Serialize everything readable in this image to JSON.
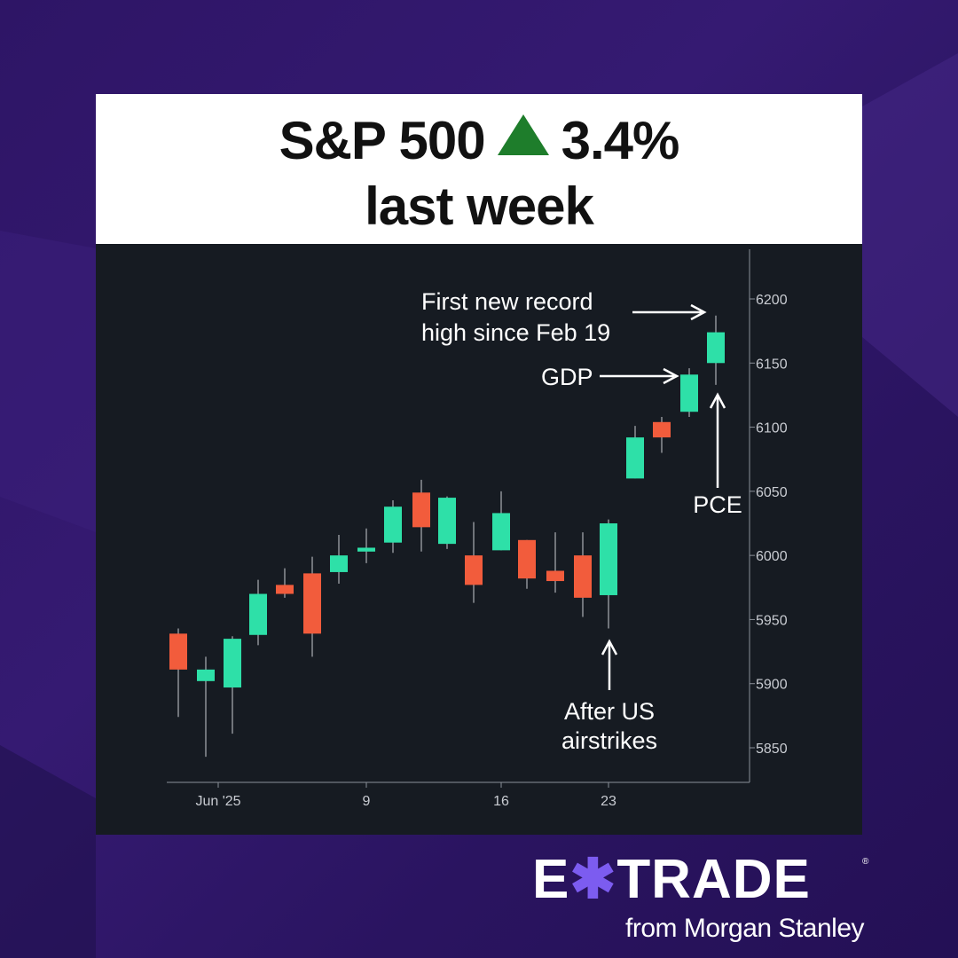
{
  "header": {
    "index_label": "S&P 500",
    "change": "3.4%",
    "period": "last week",
    "direction_icon": "up-triangle",
    "up_color": "#1e7d2b"
  },
  "chart_data": {
    "type": "candlestick",
    "y_ticks": [
      6200,
      6150,
      6100,
      6050,
      6000,
      5950,
      5900,
      5850
    ],
    "x_ticks": [
      "Jun '25",
      "9",
      "16",
      "23"
    ],
    "ylim": [
      5820,
      6235
    ],
    "grid": false,
    "up_color": "#2ee0a8",
    "down_color": "#f25c3c",
    "candles": [
      {
        "date": "May 29",
        "open": 5939,
        "high": 5943,
        "low": 5874,
        "close": 5911
      },
      {
        "date": "May 30",
        "open": 5902,
        "high": 5921,
        "low": 5843,
        "close": 5911
      },
      {
        "date": "Jun 2",
        "open": 5897,
        "high": 5937,
        "low": 5861,
        "close": 5935
      },
      {
        "date": "Jun 3",
        "open": 5938,
        "high": 5981,
        "low": 5930,
        "close": 5970
      },
      {
        "date": "Jun 4",
        "open": 5977,
        "high": 5990,
        "low": 5967,
        "close": 5970
      },
      {
        "date": "Jun 5",
        "open": 5986,
        "high": 5999,
        "low": 5921,
        "close": 5939
      },
      {
        "date": "Jun 6",
        "open": 5987,
        "high": 6016,
        "low": 5978,
        "close": 6000
      },
      {
        "date": "Jun 9",
        "open": 6003,
        "high": 6021,
        "low": 5994,
        "close": 6006
      },
      {
        "date": "Jun 10",
        "open": 6010,
        "high": 6043,
        "low": 6002,
        "close": 6038
      },
      {
        "date": "Jun 11",
        "open": 6049,
        "high": 6059,
        "low": 6003,
        "close": 6022
      },
      {
        "date": "Jun 12",
        "open": 6009,
        "high": 6046,
        "low": 6005,
        "close": 6045
      },
      {
        "date": "Jun 13",
        "open": 6000,
        "high": 6026,
        "low": 5963,
        "close": 5977
      },
      {
        "date": "Jun 16",
        "open": 6004,
        "high": 6050,
        "low": 6004,
        "close": 6033
      },
      {
        "date": "Jun 17",
        "open": 6012,
        "high": 6012,
        "low": 5974,
        "close": 5982
      },
      {
        "date": "Jun 18",
        "open": 5988,
        "high": 6018,
        "low": 5971,
        "close": 5980
      },
      {
        "date": "Jun 20",
        "open": 6000,
        "high": 6018,
        "low": 5952,
        "close": 5967
      },
      {
        "date": "Jun 23",
        "open": 5969,
        "high": 6028,
        "low": 5943,
        "close": 6025
      },
      {
        "date": "Jun 24",
        "open": 6060,
        "high": 6101,
        "low": 6060,
        "close": 6092
      },
      {
        "date": "Jun 25",
        "open": 6104,
        "high": 6108,
        "low": 6080,
        "close": 6092
      },
      {
        "date": "Jun 26",
        "open": 6112,
        "high": 6146,
        "low": 6108,
        "close": 6141
      },
      {
        "date": "Jun 27",
        "open": 6150,
        "high": 6187,
        "low": 6133,
        "close": 6174
      }
    ],
    "annotations": {
      "record": "First new record\nhigh since Feb 19",
      "record_line1": "First new record",
      "record_line2": "high since Feb 19",
      "gdp": "GDP",
      "pce": "PCE",
      "airstrikes": "After US\nairstrikes",
      "airstrikes_line1": "After US",
      "airstrikes_line2": "airstrikes"
    }
  },
  "brand": {
    "wordmark": "E*TRADE",
    "wordmark_left": "E",
    "wordmark_mark": "✱",
    "wordmark_right": "TRADE",
    "registered": "®",
    "tagline": "from Morgan Stanley",
    "accent_color": "#7c5cf0"
  }
}
